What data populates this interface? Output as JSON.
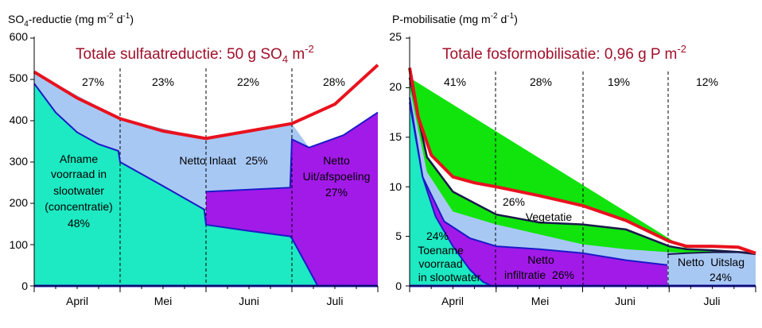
{
  "chart_data": [
    {
      "type": "area",
      "ylabel": "SO₄-reductie (mg m⁻² d⁻¹)",
      "ylabel_parts": {
        "a": "SO",
        "a_sub": "4",
        "b": "-reductie (mg m",
        "c_sup": "-2",
        "d": " d",
        "e_sup": "-1",
        "f": ")"
      },
      "title": "Totale sulfaatreductie: 50 g SO4 m-2",
      "title_parts": {
        "a": "Totale sulfaatreductie: 50 g SO",
        "a_sub": "4",
        "b": " m",
        "b_sup": "-2"
      },
      "ylim": [
        0,
        600
      ],
      "y_ticks": [
        "0",
        "100",
        "200",
        "300",
        "400",
        "500",
        "600"
      ],
      "months": [
        "April",
        "Mei",
        "Juni",
        "Juli"
      ],
      "x_unit": "month index (0 = start april, 4 = end july)",
      "percentages": [
        "27%",
        "23%",
        "22%",
        "28%"
      ],
      "labels": {
        "afname": [
          "Afname",
          "voorraad in",
          "slootwater",
          "(concentratie)",
          "48%"
        ],
        "inlaat": "Netto Inlaat   25%",
        "uitafspoeling": [
          "Netto",
          "Uit/afspoeling",
          "27%"
        ]
      },
      "series": [
        {
          "key": "total",
          "color": "#e8121e",
          "x": [
            0,
            0.5,
            1,
            1.5,
            2,
            2.5,
            3,
            3.5,
            4
          ],
          "y": [
            518,
            455,
            405,
            375,
            357,
            375,
            393,
            440,
            535
          ]
        },
        {
          "key": "afname",
          "color": "#1de9c2",
          "x": [
            0,
            0.25,
            0.5,
            0.75,
            0.98,
            1,
            1.5,
            1.98,
            2,
            2.5,
            2.98,
            3,
            3.15,
            3.3
          ],
          "y": [
            490,
            420,
            372,
            343,
            327,
            300,
            242,
            185,
            148,
            133,
            120,
            115,
            58,
            0
          ]
        },
        {
          "key": "netto_inlaat",
          "color": "#a8c8f4",
          "x": [
            0,
            1,
            2,
            3,
            3.2,
            3.6,
            4
          ],
          "y": [
            518,
            405,
            357,
            393,
            335,
            365,
            420
          ]
        },
        {
          "key": "netto_uitafspoeling",
          "color": "#a21ae8",
          "x": [
            2,
            2.98,
            3,
            3.2,
            3.6,
            4
          ],
          "y": [
            228,
            238,
            355,
            335,
            365,
            420
          ]
        }
      ]
    },
    {
      "type": "area",
      "ylabel": "P-mobilisatie (mg m⁻² d⁻¹)",
      "ylabel_parts": {
        "a": "P-mobilisatie (mg m",
        "a_sup": "-2",
        "b": " d",
        "b_sup": "-1",
        "c": ")"
      },
      "title": "Totale fosformobilisatie: 0,96 g P m-2",
      "title_parts": {
        "a": "Totale fosformobilisatie: 0,96 g P m",
        "a_sup": "-2"
      },
      "ylim": [
        0,
        25
      ],
      "y_ticks": [
        "0",
        "5",
        "10",
        "15",
        "20",
        "25"
      ],
      "months": [
        "April",
        "Mei",
        "Juni",
        "Juli"
      ],
      "x_unit": "month index (0 = start april, 4 = end july)",
      "percentages": [
        "41%",
        "28%",
        "19%",
        "12%"
      ],
      "labels": {
        "vegetatie": [
          "26%",
          "Vegetatie"
        ],
        "toename": [
          "24%",
          "Toename",
          "voorraad",
          "in slootwater"
        ],
        "infiltratie": [
          "Netto",
          "infiltratie  26%"
        ],
        "uitslag": [
          "Netto  Uitslag",
          "24%"
        ]
      },
      "series": [
        {
          "key": "total",
          "color": "#e8121e",
          "x": [
            0,
            0.1,
            0.25,
            0.5,
            0.75,
            1,
            1.5,
            2,
            2.5,
            3,
            3.2,
            3.5,
            3.8,
            4
          ],
          "y": [
            22,
            17,
            13.2,
            11,
            10.4,
            10,
            9.1,
            8.1,
            6.6,
            4.5,
            4,
            4,
            3.9,
            3.3
          ]
        },
        {
          "key": "vegetatie",
          "color": "#10e40c",
          "x": [
            0,
            0.2,
            0.5,
            1,
            1.5,
            2,
            2.5,
            3,
            3.2,
            3.5,
            4
          ],
          "y": [
            21,
            13,
            9.5,
            7.2,
            6.4,
            6.2,
            5.7,
            4,
            3.7,
            3.6,
            3.3
          ]
        },
        {
          "key": "lightblue",
          "color": "#a8c8f4",
          "x": [
            0,
            0.2,
            0.5,
            1,
            1.5,
            2,
            2.5,
            3,
            3.5,
            4
          ],
          "y": [
            20,
            11.5,
            7.5,
            6.2,
            5.2,
            4.2,
            3.7,
            3.4,
            3.3,
            3.1
          ]
        },
        {
          "key": "infiltratie",
          "color": "#a21ae8",
          "x": [
            0,
            0.15,
            0.4,
            0.7,
            1,
            1.5,
            2,
            2.5,
            2.98
          ],
          "y": [
            19,
            11,
            6.5,
            4.8,
            4,
            3.7,
            3.3,
            2.6,
            2.1
          ]
        },
        {
          "key": "toename",
          "color": "#1de9c2",
          "x": [
            0,
            0.15,
            0.3,
            0.5,
            0.7,
            0.85,
            0.95
          ],
          "y": [
            18.5,
            11,
            7,
            4,
            1.6,
            0.4,
            0
          ]
        },
        {
          "key": "uitslag",
          "color": "#a8c8f4",
          "x": [
            2.98,
            3.2,
            3.5,
            3.8,
            4
          ],
          "y": [
            3.2,
            3.3,
            3.4,
            3.4,
            3.2
          ]
        }
      ]
    }
  ]
}
